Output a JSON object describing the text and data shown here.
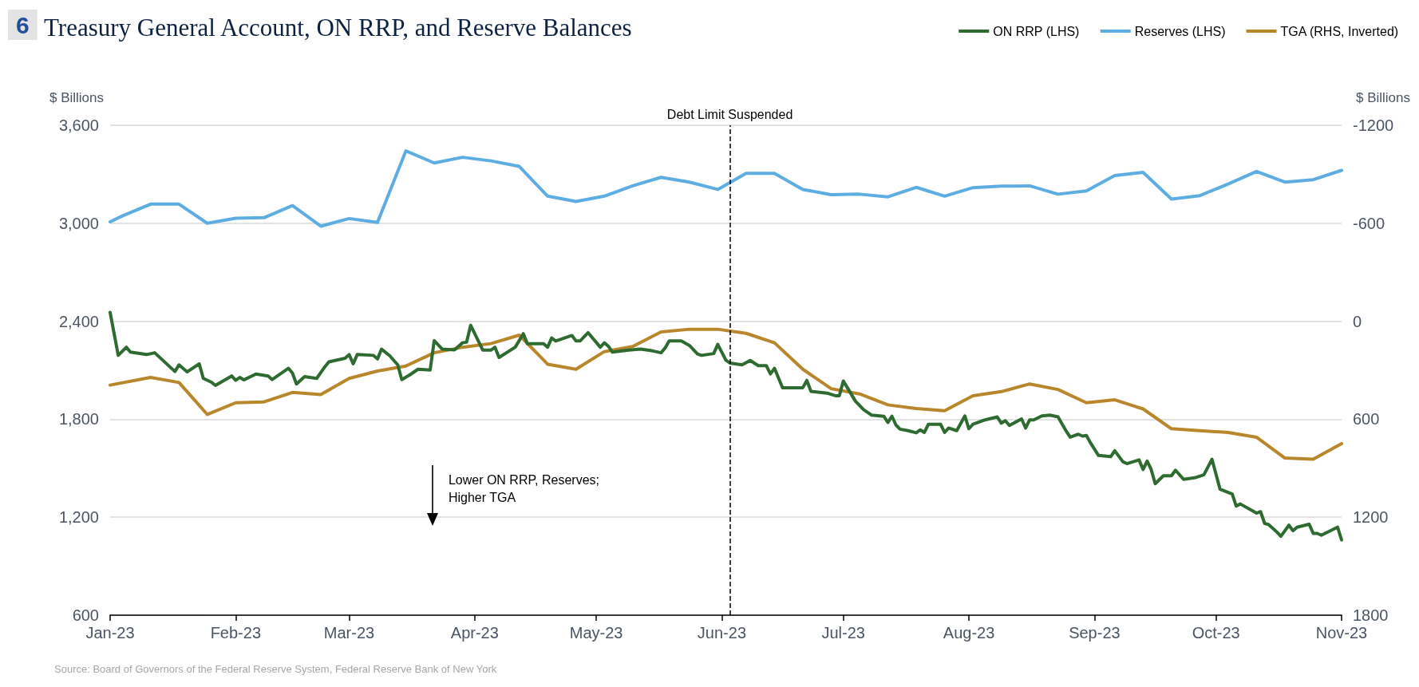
{
  "chart_data": {
    "type": "line",
    "title": "Treasury General Account, ON RRP, and Reserve Balances",
    "ylabel": "$ Billions",
    "y2label": "$ Billions",
    "annotations": [
      "6",
      "Lower ON RRP, Reserves; Higher TGA",
      "Source: Board of Governors of the Federal Reserve System, Federal Reserve Bank of New York"
    ],
    "xlim": [
      "2023-01-01",
      "2023-11-01"
    ],
    "xticks": [
      {
        "value": "2023-01-01",
        "label": "Jan-23"
      },
      {
        "value": "2023-02-01",
        "label": "Feb-23"
      },
      {
        "value": "2023-03-01",
        "label": "Mar-23"
      },
      {
        "value": "2023-04-01",
        "label": "Apr-23"
      },
      {
        "value": "2023-05-01",
        "label": "May-23"
      },
      {
        "value": "2023-06-01",
        "label": "Jun-23"
      },
      {
        "value": "2023-07-01",
        "label": "Jul-23"
      },
      {
        "value": "2023-08-01",
        "label": "Aug-23"
      },
      {
        "value": "2023-09-01",
        "label": "Sep-23"
      },
      {
        "value": "2023-10-01",
        "label": "Oct-23"
      },
      {
        "value": "2023-11-01",
        "label": "Nov-23"
      }
    ],
    "ylim": [
      600,
      3600
    ],
    "yticks": [
      600,
      {
        "value": 1200,
        "label": "1,200"
      },
      {
        "value": 1800,
        "label": "1,800"
      },
      {
        "value": 2400,
        "label": "2,400"
      },
      {
        "value": 3000,
        "label": "3,000"
      },
      {
        "value": 3600,
        "label": "3,600"
      }
    ],
    "y2lim": [
      1800,
      -1200
    ],
    "y2ticks": [
      -1200,
      -600,
      0,
      600,
      1200,
      1800
    ],
    "grid": "y",
    "legend": "top right",
    "marker": "none",
    "line_style": "solid",
    "ref_lines": [
      {
        "axis": "x",
        "value": "2023-06-03",
        "label": "Debt Limit Suspended",
        "color": "#000000",
        "line_style": "dashed"
      }
    ],
    "series": [
      {
        "name": "ON RRP (LHS)",
        "color": "#2e6b30",
        "x": [
          "2023-01-01",
          "2023-01-03",
          "2023-01-05",
          "2023-01-06",
          "2023-01-10",
          "2023-01-12",
          "2023-01-17",
          "2023-01-18",
          "2023-01-20",
          "2023-01-23",
          "2023-01-24",
          "2023-01-26",
          "2023-01-27",
          "2023-01-31",
          "2023-02-01",
          "2023-02-02",
          "2023-02-03",
          "2023-02-06",
          "2023-02-09",
          "2023-02-10",
          "2023-02-14",
          "2023-02-15",
          "2023-02-16",
          "2023-02-18",
          "2023-02-21",
          "2023-02-23",
          "2023-02-24",
          "2023-02-28",
          "2023-03-01",
          "2023-03-02",
          "2023-03-03",
          "2023-03-07",
          "2023-03-08",
          "2023-03-09",
          "2023-03-11",
          "2023-03-13",
          "2023-03-14",
          "2023-03-16",
          "2023-03-18",
          "2023-03-21",
          "2023-03-22",
          "2023-03-24",
          "2023-03-27",
          "2023-03-29",
          "2023-03-30",
          "2023-03-31",
          "2023-04-03",
          "2023-04-05",
          "2023-04-06",
          "2023-04-07",
          "2023-04-11",
          "2023-04-13",
          "2023-04-14",
          "2023-04-18",
          "2023-04-19",
          "2023-04-20",
          "2023-04-21",
          "2023-04-25",
          "2023-04-26",
          "2023-04-27",
          "2023-04-29",
          "2023-05-02",
          "2023-05-03",
          "2023-05-04",
          "2023-05-05",
          "2023-05-09",
          "2023-05-12",
          "2023-05-15",
          "2023-05-17",
          "2023-05-18",
          "2023-05-19",
          "2023-05-22",
          "2023-05-24",
          "2023-05-26",
          "2023-05-27",
          "2023-05-30",
          "2023-05-31",
          "2023-06-02",
          "2023-06-03",
          "2023-06-06",
          "2023-06-08",
          "2023-06-10",
          "2023-06-12",
          "2023-06-13",
          "2023-06-14",
          "2023-06-16",
          "2023-06-21",
          "2023-06-22",
          "2023-06-23",
          "2023-06-27",
          "2023-06-29",
          "2023-06-30",
          "2023-07-01",
          "2023-07-02",
          "2023-07-04",
          "2023-07-06",
          "2023-07-08",
          "2023-07-11",
          "2023-07-12",
          "2023-07-13",
          "2023-07-14",
          "2023-07-15",
          "2023-07-17",
          "2023-07-19",
          "2023-07-20",
          "2023-07-21",
          "2023-07-22",
          "2023-07-25",
          "2023-07-26",
          "2023-07-27",
          "2023-07-29",
          "2023-07-31",
          "2023-08-01",
          "2023-08-02",
          "2023-08-05",
          "2023-08-08",
          "2023-08-09",
          "2023-08-10",
          "2023-08-11",
          "2023-08-14",
          "2023-08-15",
          "2023-08-16",
          "2023-08-17",
          "2023-08-19",
          "2023-08-21",
          "2023-08-23",
          "2023-08-25",
          "2023-08-26",
          "2023-08-28",
          "2023-08-29",
          "2023-08-30",
          "2023-08-31",
          "2023-09-02",
          "2023-09-05",
          "2023-09-06",
          "2023-09-08",
          "2023-09-09",
          "2023-09-12",
          "2023-09-13",
          "2023-09-14",
          "2023-09-15",
          "2023-09-16",
          "2023-09-18",
          "2023-09-20",
          "2023-09-21",
          "2023-09-23",
          "2023-09-26",
          "2023-09-28",
          "2023-09-30",
          "2023-10-02",
          "2023-10-05",
          "2023-10-06",
          "2023-10-07",
          "2023-10-11",
          "2023-10-12",
          "2023-10-13",
          "2023-10-14",
          "2023-10-16",
          "2023-10-17",
          "2023-10-19",
          "2023-10-20",
          "2023-10-21",
          "2023-10-24",
          "2023-10-25",
          "2023-10-26",
          "2023-10-27",
          "2023-10-31",
          "2023-11-01"
        ],
        "values": [
          2454,
          2191,
          2241,
          2211,
          2196,
          2207,
          2092,
          2133,
          2090,
          2139,
          2050,
          2027,
          2007,
          2065,
          2038,
          2056,
          2041,
          2077,
          2065,
          2043,
          2112,
          2083,
          2016,
          2061,
          2050,
          2121,
          2151,
          2173,
          2196,
          2139,
          2196,
          2191,
          2169,
          2229,
          2189,
          2133,
          2043,
          2072,
          2106,
          2101,
          2281,
          2229,
          2225,
          2268,
          2272,
          2375,
          2223,
          2223,
          2241,
          2178,
          2241,
          2324,
          2263,
          2263,
          2241,
          2297,
          2279,
          2313,
          2279,
          2279,
          2330,
          2241,
          2268,
          2247,
          2211,
          2223,
          2229,
          2218,
          2207,
          2236,
          2279,
          2279,
          2252,
          2200,
          2191,
          2202,
          2258,
          2162,
          2144,
          2133,
          2160,
          2128,
          2128,
          2077,
          2112,
          1993,
          1993,
          2038,
          1971,
          1960,
          1944,
          1944,
          2034,
          1993,
          1910,
          1859,
          1825,
          1818,
          1780,
          1818,
          1764,
          1739,
          1730,
          1717,
          1735,
          1719,
          1769,
          1769,
          1719,
          1746,
          1730,
          1820,
          1742,
          1769,
          1796,
          1814,
          1776,
          1791,
          1762,
          1802,
          1746,
          1796,
          1796,
          1820,
          1825,
          1814,
          1728,
          1690,
          1708,
          1697,
          1701,
          1656,
          1578,
          1571,
          1607,
          1540,
          1528,
          1551,
          1492,
          1544,
          1492,
          1405,
          1454,
          1454,
          1488,
          1432,
          1443,
          1459,
          1555,
          1371,
          1342,
          1268,
          1281,
          1225,
          1234,
          1162,
          1155,
          1110,
          1083,
          1151,
          1117,
          1139,
          1157,
          1101,
          1101,
          1090,
          1139,
          1061
        ]
      },
      {
        "name": "Reserves (LHS)",
        "color": "#5dade2",
        "x": [
          "2023-01-01",
          "2023-01-04",
          "2023-01-11",
          "2023-01-18",
          "2023-01-25",
          "2023-02-01",
          "2023-02-08",
          "2023-02-15",
          "2023-02-22",
          "2023-03-01",
          "2023-03-08",
          "2023-03-15",
          "2023-03-22",
          "2023-03-29",
          "2023-04-05",
          "2023-04-12",
          "2023-04-19",
          "2023-04-26",
          "2023-05-03",
          "2023-05-10",
          "2023-05-17",
          "2023-05-24",
          "2023-05-31",
          "2023-06-07",
          "2023-06-14",
          "2023-06-21",
          "2023-06-28",
          "2023-07-05",
          "2023-07-12",
          "2023-07-19",
          "2023-07-26",
          "2023-08-02",
          "2023-08-09",
          "2023-08-16",
          "2023-08-23",
          "2023-08-30",
          "2023-09-06",
          "2023-09-13",
          "2023-09-20",
          "2023-09-27",
          "2023-10-04",
          "2023-10-11",
          "2023-10-18",
          "2023-10-25",
          "2023-11-01"
        ],
        "values": [
          3009,
          3045,
          3117,
          3117,
          3000,
          3031,
          3034,
          3108,
          2982,
          3029,
          3005,
          3443,
          3369,
          3404,
          3382,
          3348,
          3166,
          3133,
          3166,
          3229,
          3281,
          3252,
          3207,
          3306,
          3306,
          3207,
          3175,
          3178,
          3162,
          3220,
          3166,
          3218,
          3227,
          3229,
          3178,
          3198,
          3292,
          3312,
          3148,
          3169,
          3240,
          3317,
          3252,
          3267,
          3324
        ]
      },
      {
        "name": "TGA (RHS, Inverted)",
        "color": "#b8862b",
        "axis": "y2",
        "x": [
          "2023-01-01",
          "2023-01-11",
          "2023-01-18",
          "2023-01-25",
          "2023-02-01",
          "2023-02-08",
          "2023-02-15",
          "2023-02-22",
          "2023-03-01",
          "2023-03-08",
          "2023-03-15",
          "2023-03-22",
          "2023-03-29",
          "2023-04-05",
          "2023-04-12",
          "2023-04-19",
          "2023-04-26",
          "2023-05-03",
          "2023-05-10",
          "2023-05-17",
          "2023-05-24",
          "2023-05-31",
          "2023-06-07",
          "2023-06-14",
          "2023-06-21",
          "2023-06-28",
          "2023-07-05",
          "2023-07-12",
          "2023-07-19",
          "2023-07-26",
          "2023-08-02",
          "2023-08-09",
          "2023-08-16",
          "2023-08-23",
          "2023-08-30",
          "2023-09-06",
          "2023-09-13",
          "2023-09-20",
          "2023-09-27",
          "2023-10-04",
          "2023-10-11",
          "2023-10-18",
          "2023-10-25",
          "2023-11-01"
        ],
        "values": [
          391,
          344,
          375,
          571,
          499,
          494,
          436,
          449,
          350,
          305,
          274,
          193,
          159,
          137,
          85,
          263,
          294,
          186,
          155,
          65,
          49,
          49,
          74,
          132,
          294,
          413,
          445,
          512,
          535,
          548,
          456,
          431,
          384,
          418,
          499,
          481,
          537,
          658,
          670,
          681,
          710,
          838,
          845,
          750
        ]
      }
    ]
  }
}
